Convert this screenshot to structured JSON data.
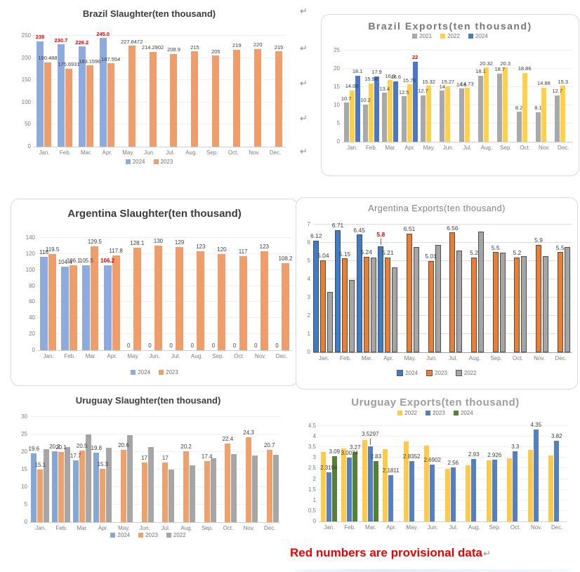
{
  "page": {
    "red_note": "Red numbers are provisional data",
    "return_glyph": "↵"
  },
  "chart_data": [
    {
      "id": "brazil-slaughter",
      "type": "bar",
      "title": "Brazil Slaughter(ten thousand)",
      "categories": [
        "Jan.",
        "Feb.",
        "Mar.",
        "Apr.",
        "May.",
        "Jun.",
        "Jul.",
        "Aug.",
        "Sep.",
        "Oct.",
        "Nov.",
        "Dec."
      ],
      "yticks": [
        "0",
        "50",
        "100",
        "150",
        "200",
        "250"
      ],
      "ylim": [
        0,
        250
      ],
      "grid": true,
      "legend_position": "bottom",
      "series": [
        {
          "name": "2024",
          "color": "#8FAADC",
          "values": [
            238,
            230.7,
            226.2,
            245,
            null,
            null,
            null,
            null,
            null,
            null,
            null,
            null
          ],
          "labels": [
            "238",
            "230.7",
            "226.2",
            "245.0",
            null,
            null,
            null,
            null,
            null,
            null,
            null,
            null
          ],
          "red": [
            0,
            1,
            2,
            3
          ]
        },
        {
          "name": "2023",
          "color": "#EF9E6B",
          "values": [
            190.488,
            175.6931,
            183.1596,
            187.554,
            227.6472,
            214.2902,
            208.9,
            215,
            205,
            219,
            220,
            215
          ],
          "labels": [
            "190.488",
            "175.6931",
            "183.1596",
            "187.554",
            "227.6472",
            "214.2902",
            "208.9",
            "215",
            "205",
            "219",
            "220",
            "215"
          ]
        }
      ]
    },
    {
      "id": "brazil-exports",
      "type": "bar",
      "title": "Brazil Exports(ten thousand)",
      "categories": [
        "Jan.",
        "Feb.",
        "Mar.",
        "Apr.",
        "May.",
        "Jun.",
        "Jul.",
        "Aug.",
        "Sep.",
        "Oct.",
        "Nov.",
        "Dec."
      ],
      "yticks": [
        "0",
        "5",
        "10",
        "15",
        "20",
        "25"
      ],
      "ylim": [
        0,
        25
      ],
      "grid": true,
      "legend_position": "top",
      "series": [
        {
          "name": "2021",
          "color": "#A9A9A9",
          "values": [
            10.7,
            10.2,
            13.4,
            12.5,
            12.7,
            14,
            14.6,
            18.1,
            18.7,
            8.2,
            8.1,
            12.7
          ],
          "labels": [
            "10.7",
            "10.2",
            "13.4",
            "12.5",
            "12.7",
            "14",
            "14.6",
            "18.1",
            "18.7",
            "8.2",
            "8.1",
            "12.7"
          ]
        },
        {
          "name": "2022",
          "color": "#FFD04A",
          "values": [
            14.08,
            15.98,
            16.9,
            15.76,
            15.32,
            15.27,
            14.73,
            20.32,
            20.3,
            18.86,
            14.88,
            15.3
          ],
          "labels": [
            "14.08",
            "15.98",
            "16.9",
            "15.76",
            "15.32",
            "15.27",
            "14.73",
            "20.32",
            "20.3",
            "18.86",
            "14.88",
            "15.3"
          ]
        },
        {
          "name": "2024",
          "color": "#4A78C5",
          "values": [
            18.1,
            17.9,
            16.6,
            22,
            null,
            null,
            null,
            null,
            null,
            null,
            null,
            null
          ],
          "labels": [
            "18.1",
            "17.9",
            "16.6",
            "22",
            null,
            null,
            null,
            null,
            null,
            null,
            null,
            null
          ],
          "red": [
            3
          ]
        }
      ]
    },
    {
      "id": "argentina-slaughter",
      "type": "bar",
      "title": "Argentina Slaughter(ten thousand)",
      "categories": [
        "Jan.",
        "Feb.",
        "Mar.",
        "Apr.",
        "May.",
        "Jun.",
        "Jul.",
        "Aug.",
        "Sep.",
        "Oct.",
        "Nov.",
        "Dec."
      ],
      "yticks": [
        "0",
        "20",
        "40",
        "60",
        "80",
        "100",
        "120",
        "140"
      ],
      "ylim": [
        0,
        140
      ],
      "grid": true,
      "legend_position": "bottom",
      "series": [
        {
          "name": "2024",
          "color": "#8FAADC",
          "values": [
            116,
            104.4,
            105.5,
            106.2,
            0,
            0,
            0,
            0,
            0,
            0,
            0,
            0
          ],
          "labels": [
            "116",
            "104.4",
            "105.5",
            "106.2",
            "0",
            "0",
            "0",
            "0",
            "0",
            "0",
            "0",
            "0"
          ],
          "red": [
            3
          ]
        },
        {
          "name": "2023",
          "color": "#EF9E6B",
          "values": [
            119.5,
            106.1,
            129.5,
            117.8,
            128.1,
            130,
            129,
            123,
            120,
            117,
            123,
            108.2
          ],
          "labels": [
            "119.5",
            "106.1",
            "129.5",
            "117.8",
            "128.1",
            "130",
            "129",
            "123",
            "120",
            "117",
            "123",
            "108.2"
          ]
        }
      ]
    },
    {
      "id": "argentina-exports",
      "type": "bar",
      "title": "Argentina Exports(ten thousand)",
      "categories": [
        "Jan.",
        "Feb.",
        "Mar.",
        "Apr.",
        "May.",
        "Jun.",
        "Jul.",
        "Aug.",
        "Sep.",
        "Oct.",
        "Nov.",
        "Dec."
      ],
      "yticks": [
        "0",
        "1",
        "2",
        "3",
        "4",
        "5",
        "6",
        "7"
      ],
      "ylim": [
        0,
        7
      ],
      "grid": true,
      "legend_position": "bottom",
      "series": [
        {
          "name": "2024",
          "color": "#3D7CC9",
          "values": [
            6.12,
            6.71,
            6.45,
            5.8,
            null,
            null,
            null,
            null,
            null,
            null,
            null,
            null
          ],
          "labels": [
            "6.12",
            "6.71",
            "6.45",
            "5.8",
            null,
            null,
            null,
            null,
            null,
            null,
            null,
            null
          ],
          "red": [
            3
          ],
          "leader": [
            3
          ]
        },
        {
          "name": "2023",
          "color": "#ED7D31",
          "values": [
            5.04,
            5.15,
            5.24,
            5.21,
            6.51,
            5.01,
            6.56,
            5.2,
            5.5,
            5.2,
            5.9,
            5.5
          ],
          "labels": [
            "5.04",
            "5.15",
            "5.24",
            "5.21",
            "6.51",
            "5.01",
            "6.56",
            "5.2",
            "5.5",
            "5.2",
            "5.9",
            "5.5"
          ]
        },
        {
          "name": "2022",
          "color": "#A5A5A5",
          "values": [
            3.3,
            3.95,
            5.18,
            4.65,
            5.78,
            5.9,
            5.58,
            6.6,
            5.48,
            5.28,
            5.28,
            5.78
          ]
        }
      ]
    },
    {
      "id": "uruguay-slaughter",
      "type": "bar",
      "title": "Uruguay Slaughter(ten thousand)",
      "categories": [
        "Jan.",
        "Feb.",
        "Mar.",
        "Apr.",
        "May.",
        "Jun.",
        "Jul.",
        "Aug.",
        "Sep.",
        "Oct.",
        "Nov.",
        "Dec."
      ],
      "yticks": [
        "0",
        "5",
        "10",
        "15",
        "20",
        "25",
        "30"
      ],
      "ylim": [
        0,
        30
      ],
      "grid": true,
      "legend_position": "bottom",
      "series": [
        {
          "name": "2024",
          "color": "#84A7D4",
          "values": [
            19.6,
            20.2,
            17.7,
            19.8,
            null,
            null,
            null,
            null,
            null,
            null,
            null,
            null
          ],
          "labels": [
            "19.6",
            "20.2",
            "17.7",
            "19.8",
            null,
            null,
            null,
            null,
            null,
            null,
            null,
            null
          ]
        },
        {
          "name": "2023",
          "color": "#F0A06B",
          "values": [
            15.1,
            20.1,
            20.5,
            15.3,
            20.6,
            17,
            17,
            20.2,
            17.4,
            22.4,
            24.3,
            20.7
          ],
          "labels": [
            "15.1",
            "20.1",
            "20.5",
            "15.3",
            "20.6",
            "17",
            "17",
            "20.2",
            "17.4",
            "22.4",
            "24.3",
            "20.7"
          ]
        },
        {
          "name": "2022",
          "color": "#A6A6A6",
          "values": [
            20.8,
            21.4,
            25.1,
            21.2,
            24.8,
            21.4,
            15,
            16.2,
            18.2,
            19.4,
            19,
            19.3
          ]
        }
      ]
    },
    {
      "id": "uruguay-exports",
      "type": "bar",
      "title": "Uruguay Exports(ten thousand)",
      "categories": [
        "Jan.",
        "Feb.",
        "Mar.",
        "Apr.",
        "May.",
        "Jun.",
        "Jul.",
        "Aug.",
        "Sep.",
        "Oct.",
        "Nov.",
        "Dec."
      ],
      "yticks": [
        "0",
        "0.5",
        "1",
        "1.5",
        "2",
        "2.5",
        "3",
        "3.5",
        "4",
        "4.5"
      ],
      "ylim": [
        0,
        4.5
      ],
      "grid": true,
      "legend_position": "top",
      "series": [
        {
          "name": "2022",
          "color": "#FFC94A",
          "values": [
            3.27,
            3.45,
            3.85,
            3.4,
            3.76,
            3.57,
            2.48,
            2.64,
            2.88,
            2.97,
            3.36,
            3.12
          ]
        },
        {
          "name": "2023",
          "color": "#5480C1",
          "values": [
            2.3194,
            3.0074,
            3.5297,
            2.1811,
            2.8352,
            2.6902,
            2.56,
            2.93,
            2.926,
            3.3,
            4.35,
            3.82
          ],
          "labels": [
            "2.3194",
            "3.0074",
            "3.5297",
            "2.1811",
            "2.8352",
            "2.6902",
            "2.56",
            "2.93",
            "2.926",
            "3.3",
            "4.35",
            "3.82"
          ],
          "leader": [
            2
          ]
        },
        {
          "name": "2024",
          "color": "#548235",
          "values": [
            3.09,
            3.27,
            2.83,
            null,
            null,
            null,
            null,
            null,
            null,
            null,
            null,
            null
          ],
          "labels": [
            "3.09",
            "3.27",
            "2.83",
            null,
            null,
            null,
            null,
            null,
            null,
            null,
            null,
            null
          ]
        }
      ]
    }
  ]
}
